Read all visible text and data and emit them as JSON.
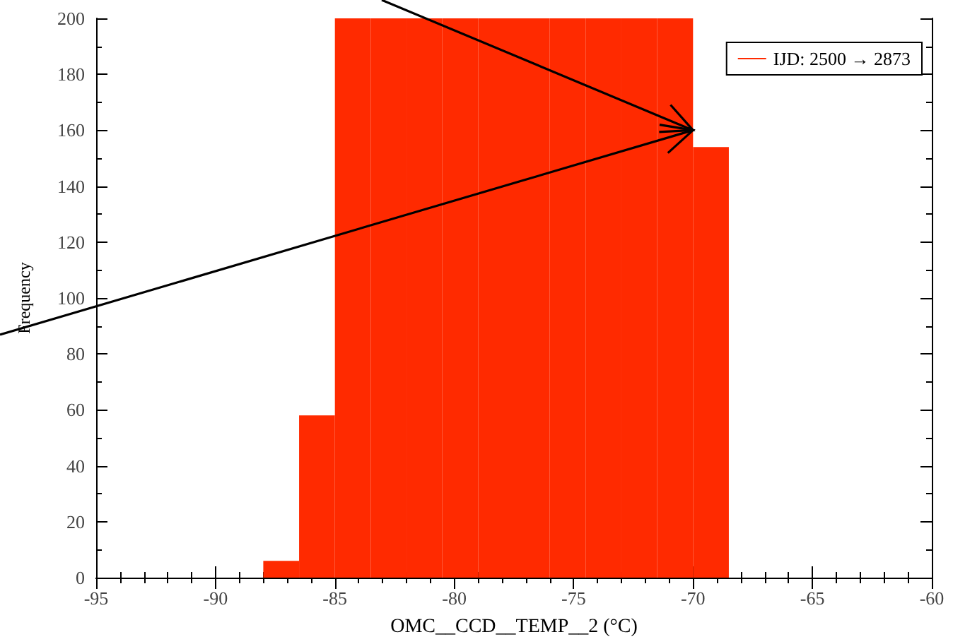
{
  "chart_data": {
    "type": "histogram",
    "xlabel": "OMC__CCD__TEMP__2 (°C)",
    "ylabel": "Frequency",
    "bins": [
      -88,
      -86.5,
      -85,
      -83.5,
      -82,
      -80.5,
      -79,
      -77.5,
      -76,
      -74.5,
      -73,
      -71.5,
      -70,
      -68.5
    ],
    "series": [
      {
        "name": "IJD: 2500 → 2873",
        "color": "#ff2a00",
        "values": [
          6,
          58,
          200,
          200,
          200,
          200,
          200,
          200,
          200,
          200,
          200,
          200,
          154
        ]
      }
    ],
    "xlim": [
      -95,
      -60
    ],
    "xticks": [
      -95,
      -90,
      -85,
      -80,
      -75,
      -70,
      -65,
      -60
    ],
    "ylim": [
      0,
      200
    ],
    "yticks": [
      0,
      20,
      40,
      60,
      80,
      100,
      120,
      140,
      160,
      180,
      200
    ],
    "grid": false,
    "legend": "top right"
  }
}
